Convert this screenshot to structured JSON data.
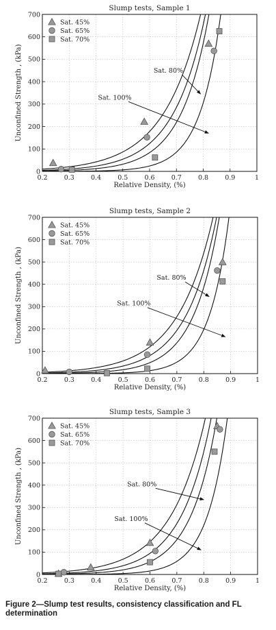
{
  "figure": {
    "caption": "Figure 2—Slump test results, consistency classification and FL determination"
  },
  "chart_data": [
    {
      "type": "scatter",
      "title": "Slump tests, Sample 1",
      "xlabel": "Relative Density, (%)",
      "ylabel": "Unconfined Strength , (kPa)",
      "xlim": [
        0.2,
        1
      ],
      "ylim": [
        0,
        700
      ],
      "xticks": [
        "0.2",
        "0.3",
        "0.4",
        "0.5",
        "0.6",
        "0.7",
        "0.8",
        "0.9",
        "1"
      ],
      "yticks": [
        "0",
        "100",
        "200",
        "300",
        "400",
        "500",
        "600",
        "700"
      ],
      "grid": true,
      "legend_position": "top-left",
      "series": [
        {
          "name": "Sat. 45%",
          "marker": "triangle",
          "points": [
            [
              0.24,
              38
            ],
            [
              0.58,
              222
            ],
            [
              0.82,
              570
            ]
          ]
        },
        {
          "name": "Sat. 65%",
          "marker": "circle",
          "points": [
            [
              0.27,
              10
            ],
            [
              0.59,
              152
            ],
            [
              0.84,
              537
            ]
          ]
        },
        {
          "name": "Sat. 70%",
          "marker": "square",
          "points": [
            [
              0.31,
              8
            ],
            [
              0.62,
              62
            ],
            [
              0.86,
              625
            ]
          ]
        }
      ],
      "curves": [
        {
          "x0": 0.2,
          "y0": 10,
          "k": 7.2
        },
        {
          "x0": 0.2,
          "y0": 4.5,
          "k": 8.3
        },
        {
          "x0": 0.2,
          "y0": 1.8,
          "k": 9.6
        },
        {
          "x0": 0.2,
          "y0": 0.15,
          "k": 12.7
        }
      ],
      "annotations": [
        {
          "text": "Sat. 80%",
          "label_xy": [
            0.67,
            440
          ],
          "arrow_to": [
            0.79,
            345
          ]
        },
        {
          "text": "Sat. 100%",
          "label_xy": [
            0.47,
            320
          ],
          "arrow_to": [
            0.82,
            170
          ]
        }
      ]
    },
    {
      "type": "scatter",
      "title": "Slump tests, Sample 2",
      "xlabel": "Relative Density, (%)",
      "ylabel": "Unconfined Strength , (kPa)",
      "xlim": [
        0.2,
        1
      ],
      "ylim": [
        0,
        700
      ],
      "xticks": [
        "0.2",
        "0.3",
        "0.4",
        "0.5",
        "0.6",
        "0.7",
        "0.8",
        "0.9",
        "1"
      ],
      "yticks": [
        "0",
        "100",
        "200",
        "300",
        "400",
        "500",
        "600",
        "700"
      ],
      "grid": true,
      "legend_position": "top-left",
      "series": [
        {
          "name": "Sat. 45%",
          "marker": "triangle",
          "points": [
            [
              0.21,
              15
            ],
            [
              0.6,
              140
            ],
            [
              0.87,
              500
            ]
          ]
        },
        {
          "name": "Sat. 65%",
          "marker": "circle",
          "points": [
            [
              0.3,
              8
            ],
            [
              0.59,
              85
            ],
            [
              0.85,
              462
            ]
          ]
        },
        {
          "name": "Sat. 70%",
          "marker": "square",
          "points": [
            [
              0.44,
              2
            ],
            [
              0.59,
              22
            ],
            [
              0.87,
              413
            ]
          ]
        }
      ],
      "curves": [
        {
          "x0": 0.2,
          "y0": 6,
          "k": 7.5
        },
        {
          "x0": 0.2,
          "y0": 2.5,
          "k": 8.7
        },
        {
          "x0": 0.2,
          "y0": 0.8,
          "k": 10.3
        },
        {
          "x0": 0.2,
          "y0": 0.06,
          "k": 13.5
        }
      ],
      "annotations": [
        {
          "text": "Sat. 80%",
          "label_xy": [
            0.68,
            420
          ],
          "arrow_to": [
            0.82,
            345
          ]
        },
        {
          "text": "Sat. 100%",
          "label_xy": [
            0.54,
            305
          ],
          "arrow_to": [
            0.88,
            165
          ]
        }
      ]
    },
    {
      "type": "scatter",
      "title": "Slump tests, Sample 3",
      "xlabel": "Relative Density, (%)",
      "ylabel": "Unconfined Strength , (kPa)",
      "xlim": [
        0.2,
        1
      ],
      "ylim": [
        0,
        700
      ],
      "xticks": [
        "0.2",
        "0.3",
        "0.4",
        "0.5",
        "0.6",
        "0.7",
        "0.8",
        "0.9",
        "1"
      ],
      "yticks": [
        "0",
        "100",
        "200",
        "300",
        "400",
        "500",
        "600",
        "700"
      ],
      "grid": true,
      "legend_position": "top-left",
      "series": [
        {
          "name": "Sat. 45%",
          "marker": "triangle",
          "points": [
            [
              0.26,
              4
            ],
            [
              0.38,
              32
            ],
            [
              0.6,
              142
            ],
            [
              0.85,
              665
            ]
          ]
        },
        {
          "name": "Sat. 65%",
          "marker": "circle",
          "points": [
            [
              0.28,
              10
            ],
            [
              0.62,
              105
            ],
            [
              0.86,
              650
            ]
          ]
        },
        {
          "name": "Sat. 70%",
          "marker": "square",
          "points": [
            [
              0.26,
              3
            ],
            [
              0.6,
              55
            ],
            [
              0.84,
              550
            ]
          ]
        }
      ],
      "curves": [
        {
          "x0": 0.2,
          "y0": 7,
          "k": 7.6
        },
        {
          "x0": 0.2,
          "y0": 2.8,
          "k": 8.8
        },
        {
          "x0": 0.2,
          "y0": 1.0,
          "k": 10.1
        },
        {
          "x0": 0.2,
          "y0": 0.08,
          "k": 13.2
        }
      ],
      "annotations": [
        {
          "text": "Sat. 80%",
          "label_xy": [
            0.57,
            395
          ],
          "arrow_to": [
            0.8,
            335
          ]
        },
        {
          "text": "Sat. 100%",
          "label_xy": [
            0.53,
            240
          ],
          "arrow_to": [
            0.79,
            110
          ]
        }
      ]
    }
  ]
}
